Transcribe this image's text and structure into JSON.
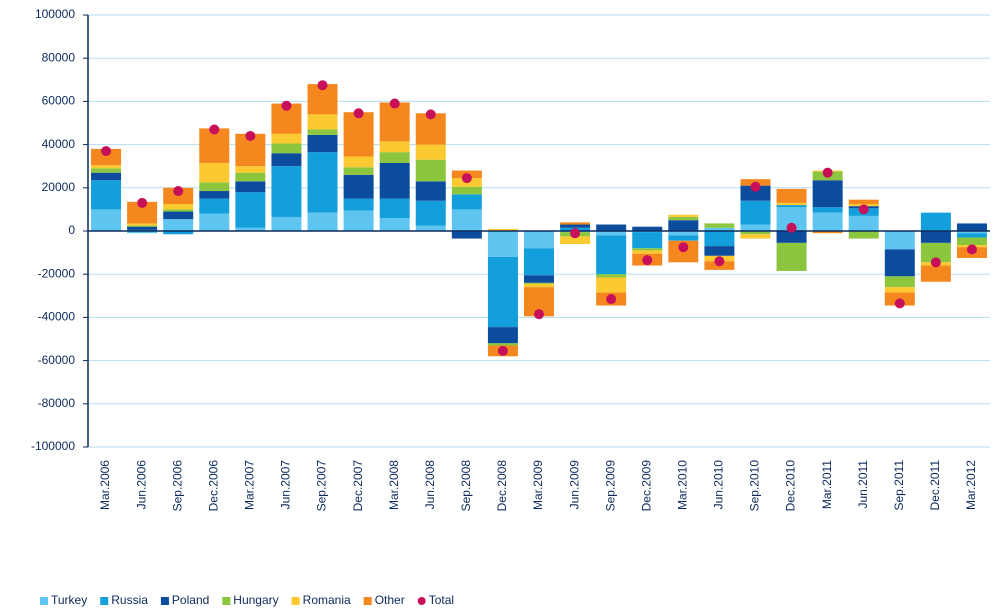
{
  "chart_data": {
    "type": "bar",
    "stacked": true,
    "categories": [
      "Mar.2006",
      "Jun.2006",
      "Sep.2006",
      "Dec.2006",
      "Mar.2007",
      "Jun.2007",
      "Sep.2007",
      "Dec.2007",
      "Mar.2008",
      "Jun.2008",
      "Sep.2008",
      "Dec.2008",
      "Mar.2009",
      "Jun.2009",
      "Sep.2009",
      "Dec.2009",
      "Mar.2010",
      "Jun.2010",
      "Sep.2010",
      "Dec.2010",
      "Mar.2011",
      "Jun.2011",
      "Sep.2011",
      "Dec.2011",
      "Mar.2012"
    ],
    "series": [
      {
        "name": "Turkey",
        "color": "#5ec5f0",
        "values": [
          10000,
          -1000,
          5500,
          8000,
          1500,
          6500,
          8500,
          9500,
          6000,
          2500,
          10000,
          -12000,
          -8000,
          -500,
          -2000,
          -500,
          -2000,
          1500,
          3000,
          11000,
          8500,
          7000,
          -8500,
          0,
          -1000
        ]
      },
      {
        "name": "Russia",
        "color": "#139fdc",
        "values": [
          13500,
          500,
          -1500,
          7000,
          16500,
          23500,
          28000,
          5500,
          9000,
          11500,
          7000,
          -32500,
          -12500,
          1500,
          -18000,
          -7500,
          -2500,
          -7000,
          11000,
          1000,
          2500,
          3500,
          0,
          8500,
          -2000
        ]
      },
      {
        "name": "Poland",
        "color": "#0b4c9c",
        "values": [
          3500,
          1500,
          3500,
          3500,
          5000,
          6000,
          8000,
          11000,
          16500,
          9000,
          -3500,
          -7500,
          -3500,
          1500,
          3000,
          2000,
          5000,
          -4500,
          7000,
          -5500,
          12500,
          1000,
          -12500,
          -5500,
          3500
        ]
      },
      {
        "name": "Hungary",
        "color": "#8cc63f",
        "values": [
          2000,
          500,
          1000,
          4000,
          4000,
          4500,
          2500,
          3500,
          5000,
          10000,
          3500,
          -1000,
          -500,
          -2000,
          -1500,
          -1000,
          1500,
          2000,
          -1500,
          -13000,
          4000,
          -3500,
          -5000,
          -9000,
          -3500
        ]
      },
      {
        "name": "Romania",
        "color": "#fcc931",
        "values": [
          1500,
          1000,
          2500,
          9000,
          3000,
          4500,
          7000,
          5000,
          5000,
          7000,
          4000,
          1000,
          -1500,
          -3500,
          -7000,
          -1500,
          1000,
          -2500,
          -2000,
          1000,
          500,
          1000,
          -2500,
          -1500,
          -1000
        ]
      },
      {
        "name": "Other",
        "color": "#f5871f",
        "values": [
          7500,
          10000,
          7500,
          16000,
          15000,
          14000,
          14000,
          20500,
          18000,
          14500,
          3500,
          -5000,
          -13500,
          1000,
          -6000,
          -5500,
          -10000,
          -4000,
          3000,
          6500,
          -1000,
          2000,
          -6000,
          -7500,
          -5000
        ]
      },
      {
        "name": "Total",
        "type": "scatter",
        "color": "#c8105a",
        "values": [
          37000,
          13000,
          18500,
          47000,
          44000,
          58000,
          67500,
          54500,
          59000,
          54000,
          24500,
          -55500,
          -38500,
          -1000,
          -31500,
          -13500,
          -7500,
          -14000,
          20500,
          1500,
          27000,
          10000,
          -33500,
          -14500,
          -8500
        ]
      }
    ],
    "ylim": [
      -100000,
      100000
    ],
    "yticks": [
      -100000,
      -80000,
      -60000,
      -40000,
      -20000,
      0,
      20000,
      40000,
      60000,
      80000,
      100000
    ],
    "grid": true,
    "legend": "bottom"
  }
}
